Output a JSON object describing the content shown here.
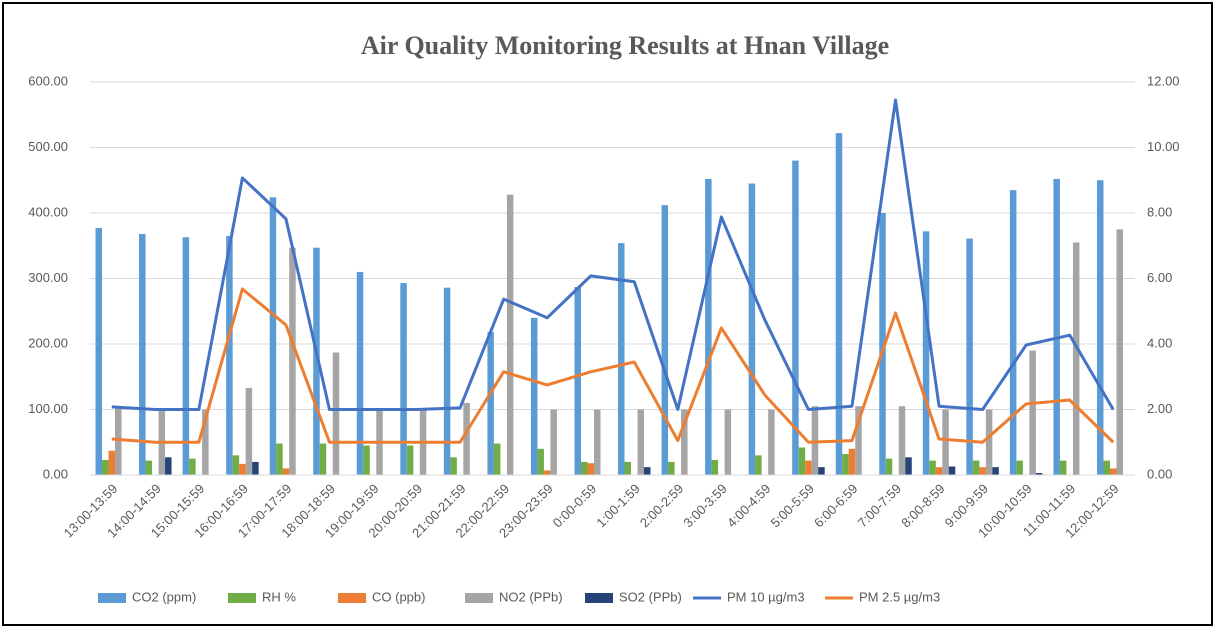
{
  "chart_data": {
    "type": "bar",
    "title": "Air Quality Monitoring Results at Hnan Village",
    "categories": [
      "13:00-13:59",
      "14:00-14:59",
      "15:00-15:59",
      "16:00-16:59",
      "17:00-17:59",
      "18:00-18:59",
      "19:00-19:59",
      "20:00-20:59",
      "21:00-21:59",
      "22:00-22:59",
      "23:00-23:59",
      "0:00-0:59",
      "1:00-1:59",
      "2:00-2:59",
      "3:00-3:59",
      "4:00-4:59",
      "5:00-5:59",
      "6:00-6:59",
      "7:00-7:59",
      "8:00-8:59",
      "9:00-9:59",
      "10:00-10:59",
      "11:00-11:59",
      "12:00-12:59"
    ],
    "series": [
      {
        "name": "CO2 (ppm)",
        "color": "#5b9bd5",
        "values": [
          377,
          368,
          363,
          365,
          424,
          347,
          310,
          293,
          286,
          218,
          240,
          287,
          354,
          412,
          452,
          445,
          480,
          522,
          400,
          372,
          361,
          435,
          452,
          450
        ]
      },
      {
        "name": "RH %",
        "color": "#70ad47",
        "values": [
          23,
          22,
          25,
          30,
          48,
          48,
          45,
          45,
          27,
          48,
          40,
          20,
          20,
          20,
          23,
          30,
          42,
          32,
          25,
          22,
          22,
          22,
          22,
          22
        ]
      },
      {
        "name": "CO (ppb)",
        "color": "#ed7d31",
        "values": [
          37,
          0,
          0,
          17,
          10,
          0,
          0,
          0,
          0,
          0,
          7,
          18,
          0,
          0,
          0,
          0,
          22,
          40,
          0,
          12,
          12,
          0,
          0,
          10
        ]
      },
      {
        "name": "NO2 (PPb)",
        "color": "#a5a5a5",
        "values": [
          105,
          100,
          100,
          133,
          347,
          187,
          100,
          100,
          110,
          428,
          100,
          100,
          100,
          100,
          100,
          100,
          105,
          105,
          105,
          100,
          100,
          190,
          355,
          375
        ]
      },
      {
        "name": "SO2 (PPb)",
        "color": "#264478",
        "values": [
          0,
          27,
          0,
          20,
          0,
          0,
          0,
          0,
          0,
          0,
          0,
          0,
          12,
          0,
          0,
          0,
          12,
          0,
          27,
          13,
          12,
          3,
          0,
          0
        ]
      },
      {
        "name": "PM 10 µg/m3",
        "color": "#4472c4",
        "type": "line",
        "axis": "y2",
        "values": [
          2.08,
          2.0,
          2.0,
          9.07,
          7.82,
          2.0,
          2.0,
          2.0,
          2.05,
          5.37,
          4.8,
          6.08,
          5.9,
          2.0,
          7.88,
          4.73,
          2.0,
          2.1,
          11.45,
          2.1,
          2.0,
          3.97,
          4.27,
          2.0
        ]
      },
      {
        "name": "PM 2.5  µg/m3",
        "color": "#ed7d31",
        "type": "line",
        "axis": "y2",
        "values": [
          1.1,
          1.0,
          1.0,
          5.68,
          4.58,
          1.0,
          1.0,
          1.0,
          1.0,
          3.15,
          2.75,
          3.15,
          3.45,
          1.05,
          4.49,
          2.44,
          1.0,
          1.05,
          4.95,
          1.1,
          1.0,
          2.17,
          2.29,
          1.0
        ]
      }
    ],
    "ylim": [
      0,
      600
    ],
    "yticks": [
      {
        "value": 0,
        "label": "0.00"
      },
      {
        "value": 100,
        "label": "100.00"
      },
      {
        "value": 200,
        "label": "200.00"
      },
      {
        "value": 300,
        "label": "300.00"
      },
      {
        "value": 400,
        "label": "400.00"
      },
      {
        "value": 500,
        "label": "500.00"
      },
      {
        "value": 600,
        "label": "600.00"
      }
    ],
    "y2lim": [
      0,
      12
    ],
    "y2ticks": [
      {
        "value": 0,
        "label": "0.00"
      },
      {
        "value": 2,
        "label": "2.00"
      },
      {
        "value": 4,
        "label": "4.00"
      },
      {
        "value": 6,
        "label": "6.00"
      },
      {
        "value": 8,
        "label": "8.00"
      },
      {
        "value": 10,
        "label": "10.00"
      },
      {
        "value": 12,
        "label": "12.00"
      }
    ],
    "grid": true,
    "legend": "bottom"
  }
}
